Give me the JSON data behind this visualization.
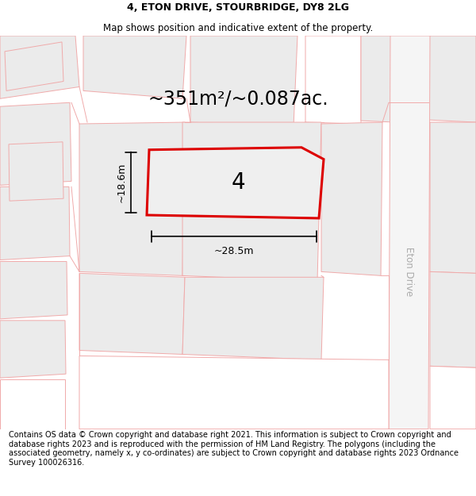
{
  "title_line1": "4, ETON DRIVE, STOURBRIDGE, DY8 2LG",
  "title_line2": "Map shows position and indicative extent of the property.",
  "area_text": "~351m²/~0.087ac.",
  "label_number": "4",
  "dim_width": "~28.5m",
  "dim_height": "~18.6m",
  "street_label": "Eton Drive",
  "footer_text": "Contains OS data © Crown copyright and database right 2021. This information is subject to Crown copyright and database rights 2023 and is reproduced with the permission of HM Land Registry. The polygons (including the associated geometry, namely x, y co-ordinates) are subject to Crown copyright and database rights 2023 Ordnance Survey 100026316.",
  "bg_color": "#ffffff",
  "map_bg_color": "#ffffff",
  "building_fill": "#ebebeb",
  "building_edge": "#f0aaaa",
  "road_fill": "#ffffff",
  "road_edge": "#f0aaaa",
  "plot_edge_color": "#dd0000",
  "plot_fill_color": "#efefef",
  "title_fontsize": 9,
  "subtitle_fontsize": 8.5,
  "area_fontsize": 17,
  "label_fontsize": 20,
  "dim_fontsize": 9,
  "footer_fontsize": 7,
  "street_fontsize": 8.5,
  "street_color": "#aaaaaa"
}
